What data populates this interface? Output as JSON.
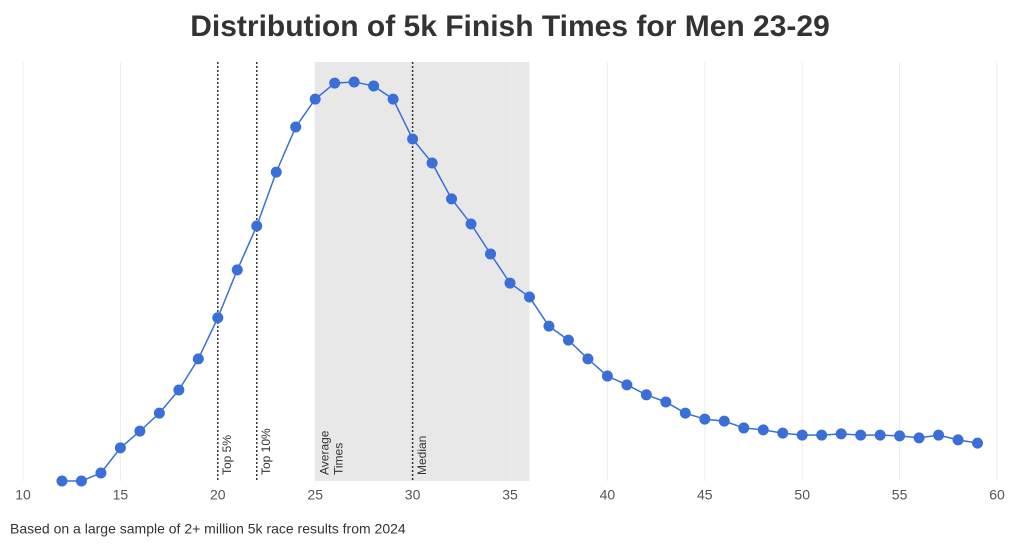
{
  "chart_data": {
    "type": "line",
    "title": "Distribution of 5k Finish Times for Men 23-29",
    "footnote": "Based on a large sample of 2+ million 5k race results from 2024",
    "x": [
      12,
      13,
      14,
      15,
      16,
      17,
      18,
      19,
      20,
      21,
      22,
      23,
      24,
      25,
      26,
      27,
      28,
      29,
      30,
      31,
      32,
      33,
      34,
      35,
      36,
      37,
      38,
      39,
      40,
      41,
      42,
      43,
      44,
      45,
      46,
      47,
      48,
      49,
      50,
      51,
      52,
      53,
      54,
      55,
      56,
      57,
      58,
      59
    ],
    "series": [
      {
        "color": "#3a6fd8",
        "values": [
          0,
          0,
          2,
          8.3,
          12.5,
          17,
          22.8,
          30.6,
          40.9,
          52.9,
          63.9,
          77.4,
          88.7,
          95.7,
          99.7,
          100,
          99,
          95.7,
          85.7,
          79.7,
          70.7,
          64.4,
          56.9,
          49.6,
          46.1,
          38.8,
          35.3,
          30.6,
          26.3,
          24.1,
          21.6,
          19.8,
          17,
          15.5,
          15,
          13.3,
          12.8,
          12,
          11.5,
          11.5,
          11.8,
          11.5,
          11.5,
          11.3,
          10.8,
          11.5,
          10.3,
          9.5
        ]
      }
    ],
    "xlim": [
      10,
      60
    ],
    "xticks": [
      10,
      15,
      20,
      25,
      30,
      35,
      40,
      45,
      50,
      55,
      60
    ],
    "ylim": [
      0,
      105
    ],
    "grid": true,
    "reference_lines": [
      {
        "x": 20,
        "label": "Top 5%"
      },
      {
        "x": 22,
        "label": "Top 10%"
      },
      {
        "x": 30,
        "label": "Median"
      }
    ],
    "shaded_band": {
      "x": [
        25,
        36
      ],
      "label": [
        "Average",
        "Times"
      ],
      "color": "#e8e8e8"
    }
  }
}
